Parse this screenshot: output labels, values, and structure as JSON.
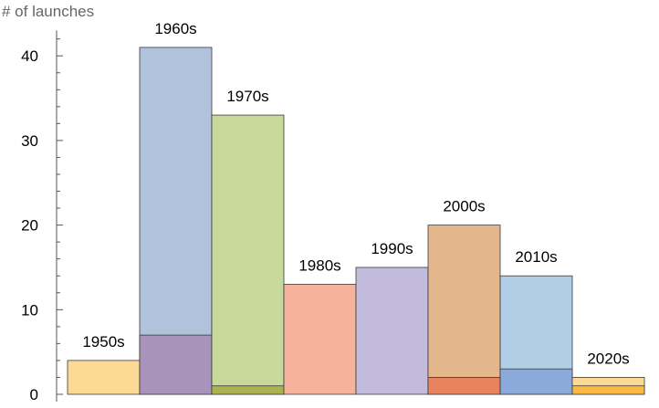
{
  "chart_data": {
    "type": "bar",
    "ylabel": "# of launches",
    "ylim": [
      0,
      43
    ],
    "yticks": [
      0,
      10,
      20,
      30,
      40
    ],
    "grid": false,
    "categories": [
      "1950s",
      "1960s",
      "1970s",
      "1980s",
      "1990s",
      "2000s",
      "2010s",
      "2020s"
    ],
    "values": [
      4,
      41,
      33,
      13,
      15,
      20,
      14,
      2
    ],
    "inner_values": [
      0,
      7,
      1,
      0,
      0,
      2,
      3,
      1
    ],
    "colors": [
      "#FCD995",
      "#B0C2DC",
      "#C8D99C",
      "#F5B39E",
      "#C2BBDB",
      "#E3B68C",
      "#B0CEE5",
      "#FCD995"
    ],
    "inner_colors": [
      "#FCD995",
      "#A893BC",
      "#ABB24E",
      "#F5B39E",
      "#C2BBDB",
      "#E7835E",
      "#8CA9DC",
      "#FCB942"
    ]
  }
}
